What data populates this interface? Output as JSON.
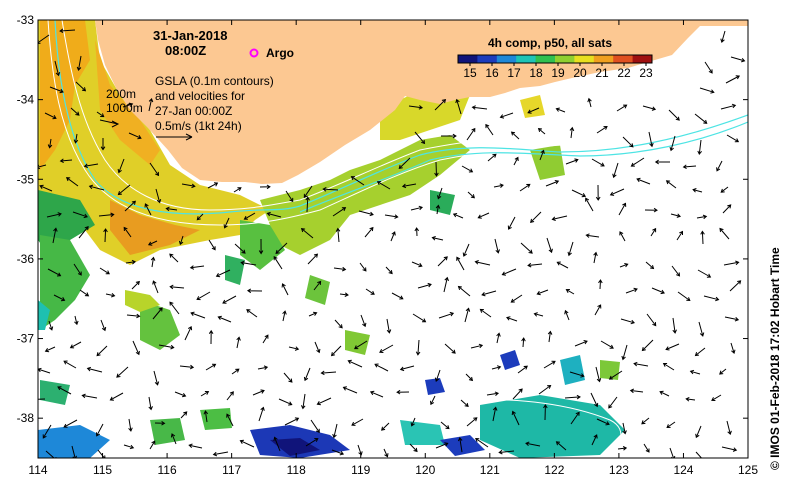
{
  "map": {
    "date": "31-Jan-2018",
    "time": "08:00Z",
    "argo_label": "Argo",
    "annotation_lines": [
      "GSLA (0.1m contours)",
      "and velocities for",
      "27-Jan 00:00Z",
      "0.5m/s (1kt 24h)"
    ],
    "isobath_labels": [
      "200m",
      "1000m"
    ],
    "colorbar_title": "4h comp, p50, all sats",
    "colorbar_ticks": [
      "15",
      "16",
      "17",
      "18",
      "19",
      "20",
      "21",
      "22",
      "23"
    ],
    "credit": "© IMOS 01-Feb-2018 17:02 Hobart Time",
    "x_ticks": [
      "114",
      "115",
      "116",
      "117",
      "118",
      "119",
      "120",
      "121",
      "122",
      "123",
      "124",
      "125"
    ],
    "y_ticks": [
      "-33",
      "-34",
      "-35",
      "-36",
      "-37",
      "-38"
    ],
    "colors": {
      "land": "#fcc892",
      "bathymetry": "#ffffff",
      "currents": "#4ee4e4",
      "argo": "#ff00ff"
    },
    "colorbar_colors": [
      "#10147a",
      "#1c3cbc",
      "#1e88d8",
      "#1ec4b6",
      "#30c050",
      "#90d030",
      "#e8e020",
      "#f0a020",
      "#e05020",
      "#a01010"
    ]
  }
}
